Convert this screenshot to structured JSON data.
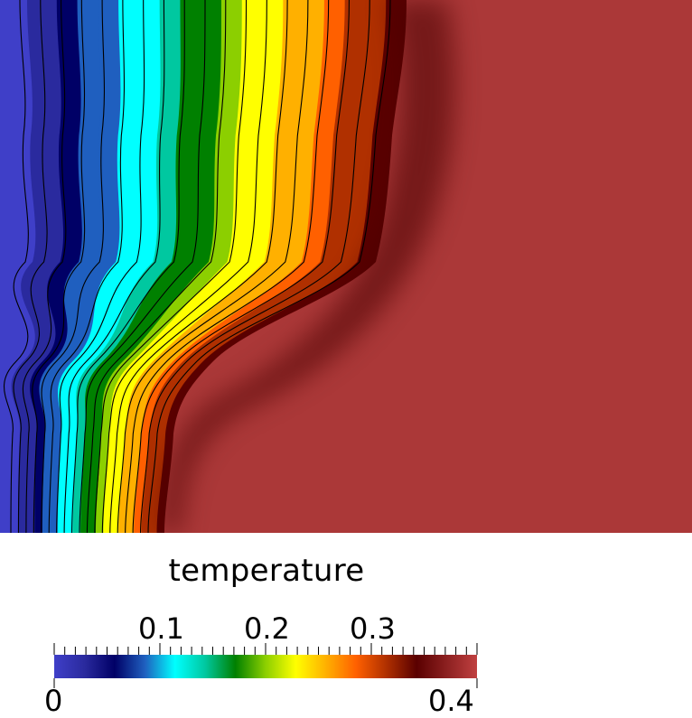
{
  "legend": {
    "title": "temperature",
    "min_label": "0",
    "max_label": "0.4",
    "tick_labels": [
      "0.1",
      "0.2",
      "0.3"
    ],
    "range": [
      0,
      0.4
    ]
  },
  "colormap": [
    "#3f3fc8",
    "#2a2a9e",
    "#000066",
    "#1f5fbf",
    "#00ffff",
    "#00c8a0",
    "#008000",
    "#8ccf00",
    "#ffff00",
    "#ffb000",
    "#ff6000",
    "#b03000",
    "#5a0000",
    "#8c2020",
    "#c04040"
  ],
  "field": {
    "hot_region_color": "#ab3838",
    "contour_color": "#000000"
  }
}
